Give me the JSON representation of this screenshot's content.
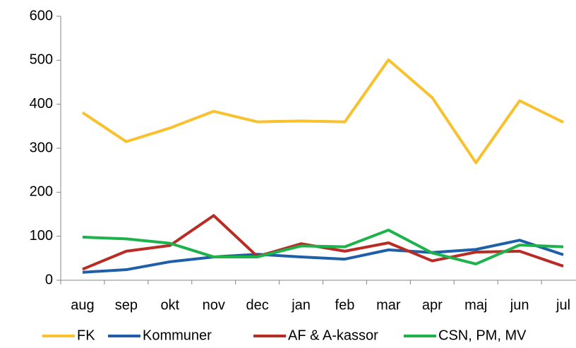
{
  "chart_data": {
    "type": "line",
    "categories": [
      "aug",
      "sep",
      "okt",
      "nov",
      "dec",
      "jan",
      "feb",
      "mar",
      "apr",
      "maj",
      "jun",
      "jul"
    ],
    "series": [
      {
        "name": "FK",
        "color": "#f8c12d",
        "values": [
          381,
          315,
          346,
          384,
          360,
          362,
          360,
          501,
          415,
          267,
          408,
          359
        ]
      },
      {
        "name": "Kommuner",
        "color": "#1f5fa8",
        "values": [
          18,
          24,
          42,
          53,
          59,
          53,
          48,
          69,
          63,
          70,
          91,
          58
        ]
      },
      {
        "name": "AF & A-kassor",
        "color": "#b82c25",
        "values": [
          25,
          66,
          79,
          147,
          54,
          83,
          66,
          85,
          44,
          64,
          66,
          32
        ]
      },
      {
        "name": "CSN, PM, MV",
        "color": "#1db24b",
        "values": [
          98,
          94,
          84,
          53,
          53,
          78,
          76,
          114,
          62,
          37,
          80,
          76
        ]
      }
    ],
    "ylim": [
      0,
      600
    ],
    "yticks": [
      0,
      100,
      200,
      300,
      400,
      500,
      600
    ],
    "grid": false,
    "legend": "bottom"
  }
}
